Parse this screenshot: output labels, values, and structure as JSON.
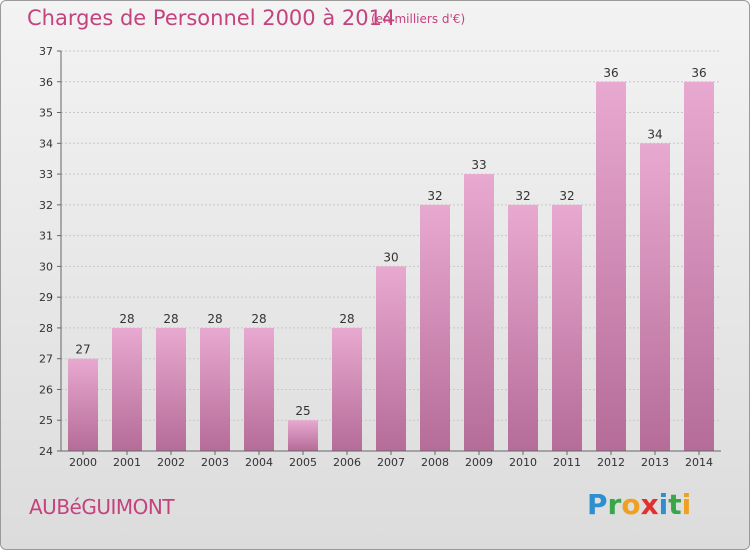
{
  "title": "Charges de Personnel 2000 à 2014",
  "subtitle": "(en milliers d'€)",
  "commune": "AUBéGUIMONT",
  "logo": {
    "letters": [
      "P",
      "r",
      "o",
      "x",
      "i",
      "t",
      "i"
    ],
    "colors": [
      "#2e8fd0",
      "#3aa64a",
      "#f0a020",
      "#e0312e",
      "#2e8fd0",
      "#3aa64a",
      "#f0a020"
    ]
  },
  "colors": {
    "bar_top": "#e8a9d0",
    "bar_bottom": "#b56c98",
    "title": "#c4427e"
  },
  "chart_data": {
    "type": "bar",
    "categories": [
      "2000",
      "2001",
      "2002",
      "2003",
      "2004",
      "2005",
      "2006",
      "2007",
      "2008",
      "2009",
      "2010",
      "2011",
      "2012",
      "2013",
      "2014"
    ],
    "values": [
      27,
      28,
      28,
      28,
      28,
      25,
      28,
      30,
      32,
      33,
      32,
      32,
      36,
      34,
      36
    ],
    "ylim": [
      24,
      37
    ],
    "yticks": [
      24,
      25,
      26,
      27,
      28,
      29,
      30,
      31,
      32,
      33,
      34,
      35,
      36,
      37
    ],
    "grid": true
  }
}
